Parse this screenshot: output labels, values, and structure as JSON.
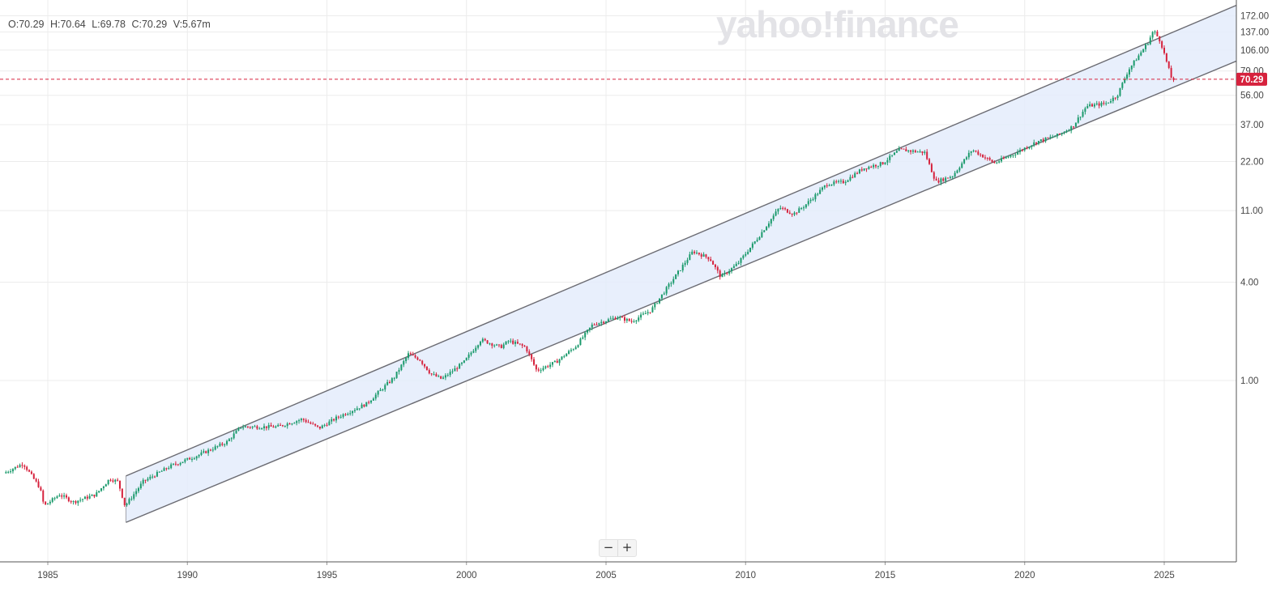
{
  "header": {
    "open_label": "O:70.29",
    "high_label": "H:70.64",
    "low_label": "L:69.78",
    "close_label": "C:70.29",
    "volume_label": "V:5.67m"
  },
  "watermark": "yahoo!finance",
  "zoom": {
    "minus": "−",
    "plus": "+"
  },
  "colors": {
    "up": "#1b9a6c",
    "down": "#d6223d",
    "channel_fill": "#e4ecfb",
    "channel_line": "#6b6b72",
    "last_price": "#d6223d"
  },
  "chart_data": {
    "type": "candlestick",
    "y_scale": "log",
    "y_ticks": [
      1.0,
      4.0,
      11.0,
      22.0,
      37.0,
      56.0,
      79.0,
      106.0,
      137.0,
      172.0
    ],
    "y_tick_labels": [
      "1.00",
      "4.00",
      "11.00",
      "22.00",
      "37.00",
      "56.00",
      "79.00",
      "106.00",
      "137.00",
      "172.00"
    ],
    "x_ticks": [
      1985,
      1990,
      1995,
      2000,
      2005,
      2010,
      2015,
      2020,
      2025
    ],
    "x_tick_labels": [
      "1985",
      "1990",
      "1995",
      "2000",
      "2005",
      "2010",
      "2015",
      "2020",
      "2025"
    ],
    "last_price": 70.29,
    "last_price_label": "70.29",
    "price_path": [
      [
        1983.5,
        0.27
      ],
      [
        1984.2,
        0.31
      ],
      [
        1984.8,
        0.22
      ],
      [
        1984.95,
        0.17
      ],
      [
        1985.5,
        0.2
      ],
      [
        1986.0,
        0.18
      ],
      [
        1986.8,
        0.2
      ],
      [
        1987.3,
        0.25
      ],
      [
        1987.6,
        0.24
      ],
      [
        1987.85,
        0.17
      ],
      [
        1988.5,
        0.24
      ],
      [
        1989.5,
        0.3
      ],
      [
        1990.5,
        0.35
      ],
      [
        1991.5,
        0.42
      ],
      [
        1992.0,
        0.52
      ],
      [
        1993.3,
        0.52
      ],
      [
        1994.2,
        0.58
      ],
      [
        1994.8,
        0.51
      ],
      [
        1995.5,
        0.6
      ],
      [
        1996.5,
        0.72
      ],
      [
        1997.5,
        1.05
      ],
      [
        1998.0,
        1.45
      ],
      [
        1998.4,
        1.35
      ],
      [
        1998.8,
        1.1
      ],
      [
        1999.2,
        1.02
      ],
      [
        2000.0,
        1.3
      ],
      [
        2000.6,
        1.78
      ],
      [
        2001.3,
        1.6
      ],
      [
        2001.6,
        1.75
      ],
      [
        2002.2,
        1.6
      ],
      [
        2002.6,
        1.15
      ],
      [
        2003.3,
        1.3
      ],
      [
        2004.0,
        1.62
      ],
      [
        2004.6,
        2.2
      ],
      [
        2005.5,
        2.45
      ],
      [
        2006.0,
        2.3
      ],
      [
        2006.7,
        2.7
      ],
      [
        2007.5,
        4.2
      ],
      [
        2008.2,
        6.2
      ],
      [
        2008.8,
        5.6
      ],
      [
        2009.2,
        4.3
      ],
      [
        2009.8,
        5.2
      ],
      [
        2010.5,
        7.4
      ],
      [
        2011.3,
        11.5
      ],
      [
        2011.8,
        10.5
      ],
      [
        2012.2,
        11.8
      ],
      [
        2013.0,
        16.0
      ],
      [
        2013.6,
        16.5
      ],
      [
        2014.3,
        20.0
      ],
      [
        2015.0,
        21.5
      ],
      [
        2015.6,
        26.0
      ],
      [
        2016.5,
        25.0
      ],
      [
        2016.9,
        16.5
      ],
      [
        2017.5,
        18.0
      ],
      [
        2018.2,
        26.0
      ],
      [
        2019.0,
        21.5
      ],
      [
        2019.7,
        24.5
      ],
      [
        2020.5,
        29.0
      ],
      [
        2021.3,
        32.0
      ],
      [
        2021.8,
        36.0
      ],
      [
        2022.3,
        48.0
      ],
      [
        2023.0,
        50.0
      ],
      [
        2023.4,
        56.0
      ],
      [
        2023.8,
        80.0
      ],
      [
        2024.5,
        118.0
      ],
      [
        2024.7,
        140.0
      ],
      [
        2024.95,
        120.0
      ],
      [
        2025.2,
        86.0
      ],
      [
        2025.35,
        70.29
      ]
    ],
    "channel": {
      "upper": [
        [
          1987.8,
          0.26
        ],
        [
          2027.6,
          200.0
        ]
      ],
      "lower": [
        [
          1987.8,
          0.135
        ],
        [
          2027.6,
          91.0
        ]
      ]
    }
  }
}
